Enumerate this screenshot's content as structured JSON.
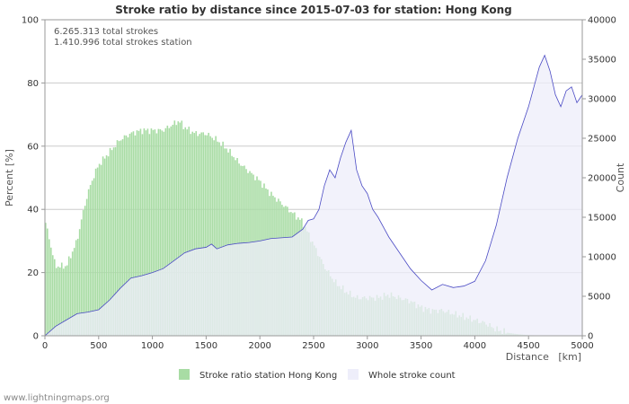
{
  "chart_data": {
    "type": "area",
    "title": "Stroke ratio by distance since 2015-07-03 for station: Hong Kong",
    "annotations": [
      "6.265.313 total strokes",
      "1.410.996 total strokes station"
    ],
    "xlabel": "Distance   [km]",
    "ylabel_left": "Percent   [%]",
    "ylabel_right": "Count",
    "xlim": [
      0,
      5000
    ],
    "ylim_left": [
      0,
      100
    ],
    "ylim_right": [
      0,
      40000
    ],
    "x_ticks": [
      "0",
      "500",
      "1000",
      "1500",
      "2000",
      "2500",
      "3000",
      "3500",
      "4000",
      "4500",
      "5000"
    ],
    "y_ticks_left": [
      "0",
      "20",
      "40",
      "60",
      "80",
      "100"
    ],
    "y_ticks_right": [
      "0",
      "5000",
      "10000",
      "15000",
      "20000",
      "25000",
      "30000",
      "35000",
      "40000"
    ],
    "grid": true,
    "legend_position": "bottom",
    "series": [
      {
        "name": "Stroke ratio station Hong Kong",
        "axis": "left",
        "kind": "bars",
        "color": "#a8dca4",
        "x": [
          0,
          100,
          200,
          250,
          300,
          350,
          400,
          450,
          500,
          600,
          700,
          800,
          900,
          1000,
          1100,
          1200,
          1250,
          1300,
          1400,
          1500,
          1600,
          1700,
          1800,
          1900,
          2000,
          2100,
          2200,
          2300,
          2400,
          2500,
          2600,
          2700,
          2800,
          2900,
          3000,
          3100,
          3200,
          3300,
          3400,
          3450,
          3500,
          3600,
          3700,
          3800,
          3900,
          4000,
          4100,
          4200,
          4300,
          4400,
          4500,
          4600,
          4700,
          5000
        ],
        "values": [
          37,
          22,
          22,
          26,
          30,
          38,
          45,
          50,
          54,
          58,
          62,
          64,
          65,
          65,
          65,
          67,
          68,
          66,
          64,
          64,
          62,
          59,
          55,
          52,
          49,
          45,
          42,
          39,
          36,
          29,
          22,
          17,
          14,
          12,
          12,
          12,
          13,
          12,
          11,
          10,
          9,
          8,
          8,
          7,
          6,
          5,
          4,
          2,
          1,
          0.5,
          0.2,
          0.1,
          0,
          0
        ]
      },
      {
        "name": "Whole stroke count",
        "axis": "right",
        "kind": "area",
        "color": "#eeeefa",
        "line_color": "#4a4ac4",
        "x": [
          0,
          100,
          200,
          300,
          400,
          500,
          600,
          700,
          800,
          900,
          1000,
          1100,
          1200,
          1300,
          1400,
          1500,
          1550,
          1600,
          1700,
          1800,
          1900,
          2000,
          2100,
          2200,
          2300,
          2400,
          2450,
          2500,
          2550,
          2600,
          2650,
          2700,
          2750,
          2800,
          2850,
          2900,
          2950,
          3000,
          3050,
          3100,
          3200,
          3300,
          3400,
          3500,
          3600,
          3700,
          3800,
          3900,
          4000,
          4100,
          4200,
          4300,
          4400,
          4500,
          4600,
          4650,
          4700,
          4750,
          4800,
          4850,
          4900,
          4950,
          5000
        ],
        "values": [
          0,
          1200,
          2000,
          2800,
          3000,
          3300,
          4500,
          6000,
          7300,
          7600,
          8000,
          8500,
          9500,
          10500,
          11000,
          11200,
          11600,
          11000,
          11500,
          11700,
          11800,
          12000,
          12300,
          12400,
          12500,
          13500,
          14600,
          14800,
          16000,
          19000,
          21000,
          20000,
          22500,
          24500,
          26000,
          21000,
          19000,
          18000,
          16000,
          15000,
          12500,
          10500,
          8500,
          7000,
          5800,
          6500,
          6100,
          6300,
          6900,
          9500,
          14000,
          20000,
          25000,
          29000,
          34000,
          35500,
          33500,
          30500,
          29000,
          31000,
          31500,
          29500,
          30500
        ]
      }
    ]
  },
  "watermark": "www.lightningmaps.org"
}
